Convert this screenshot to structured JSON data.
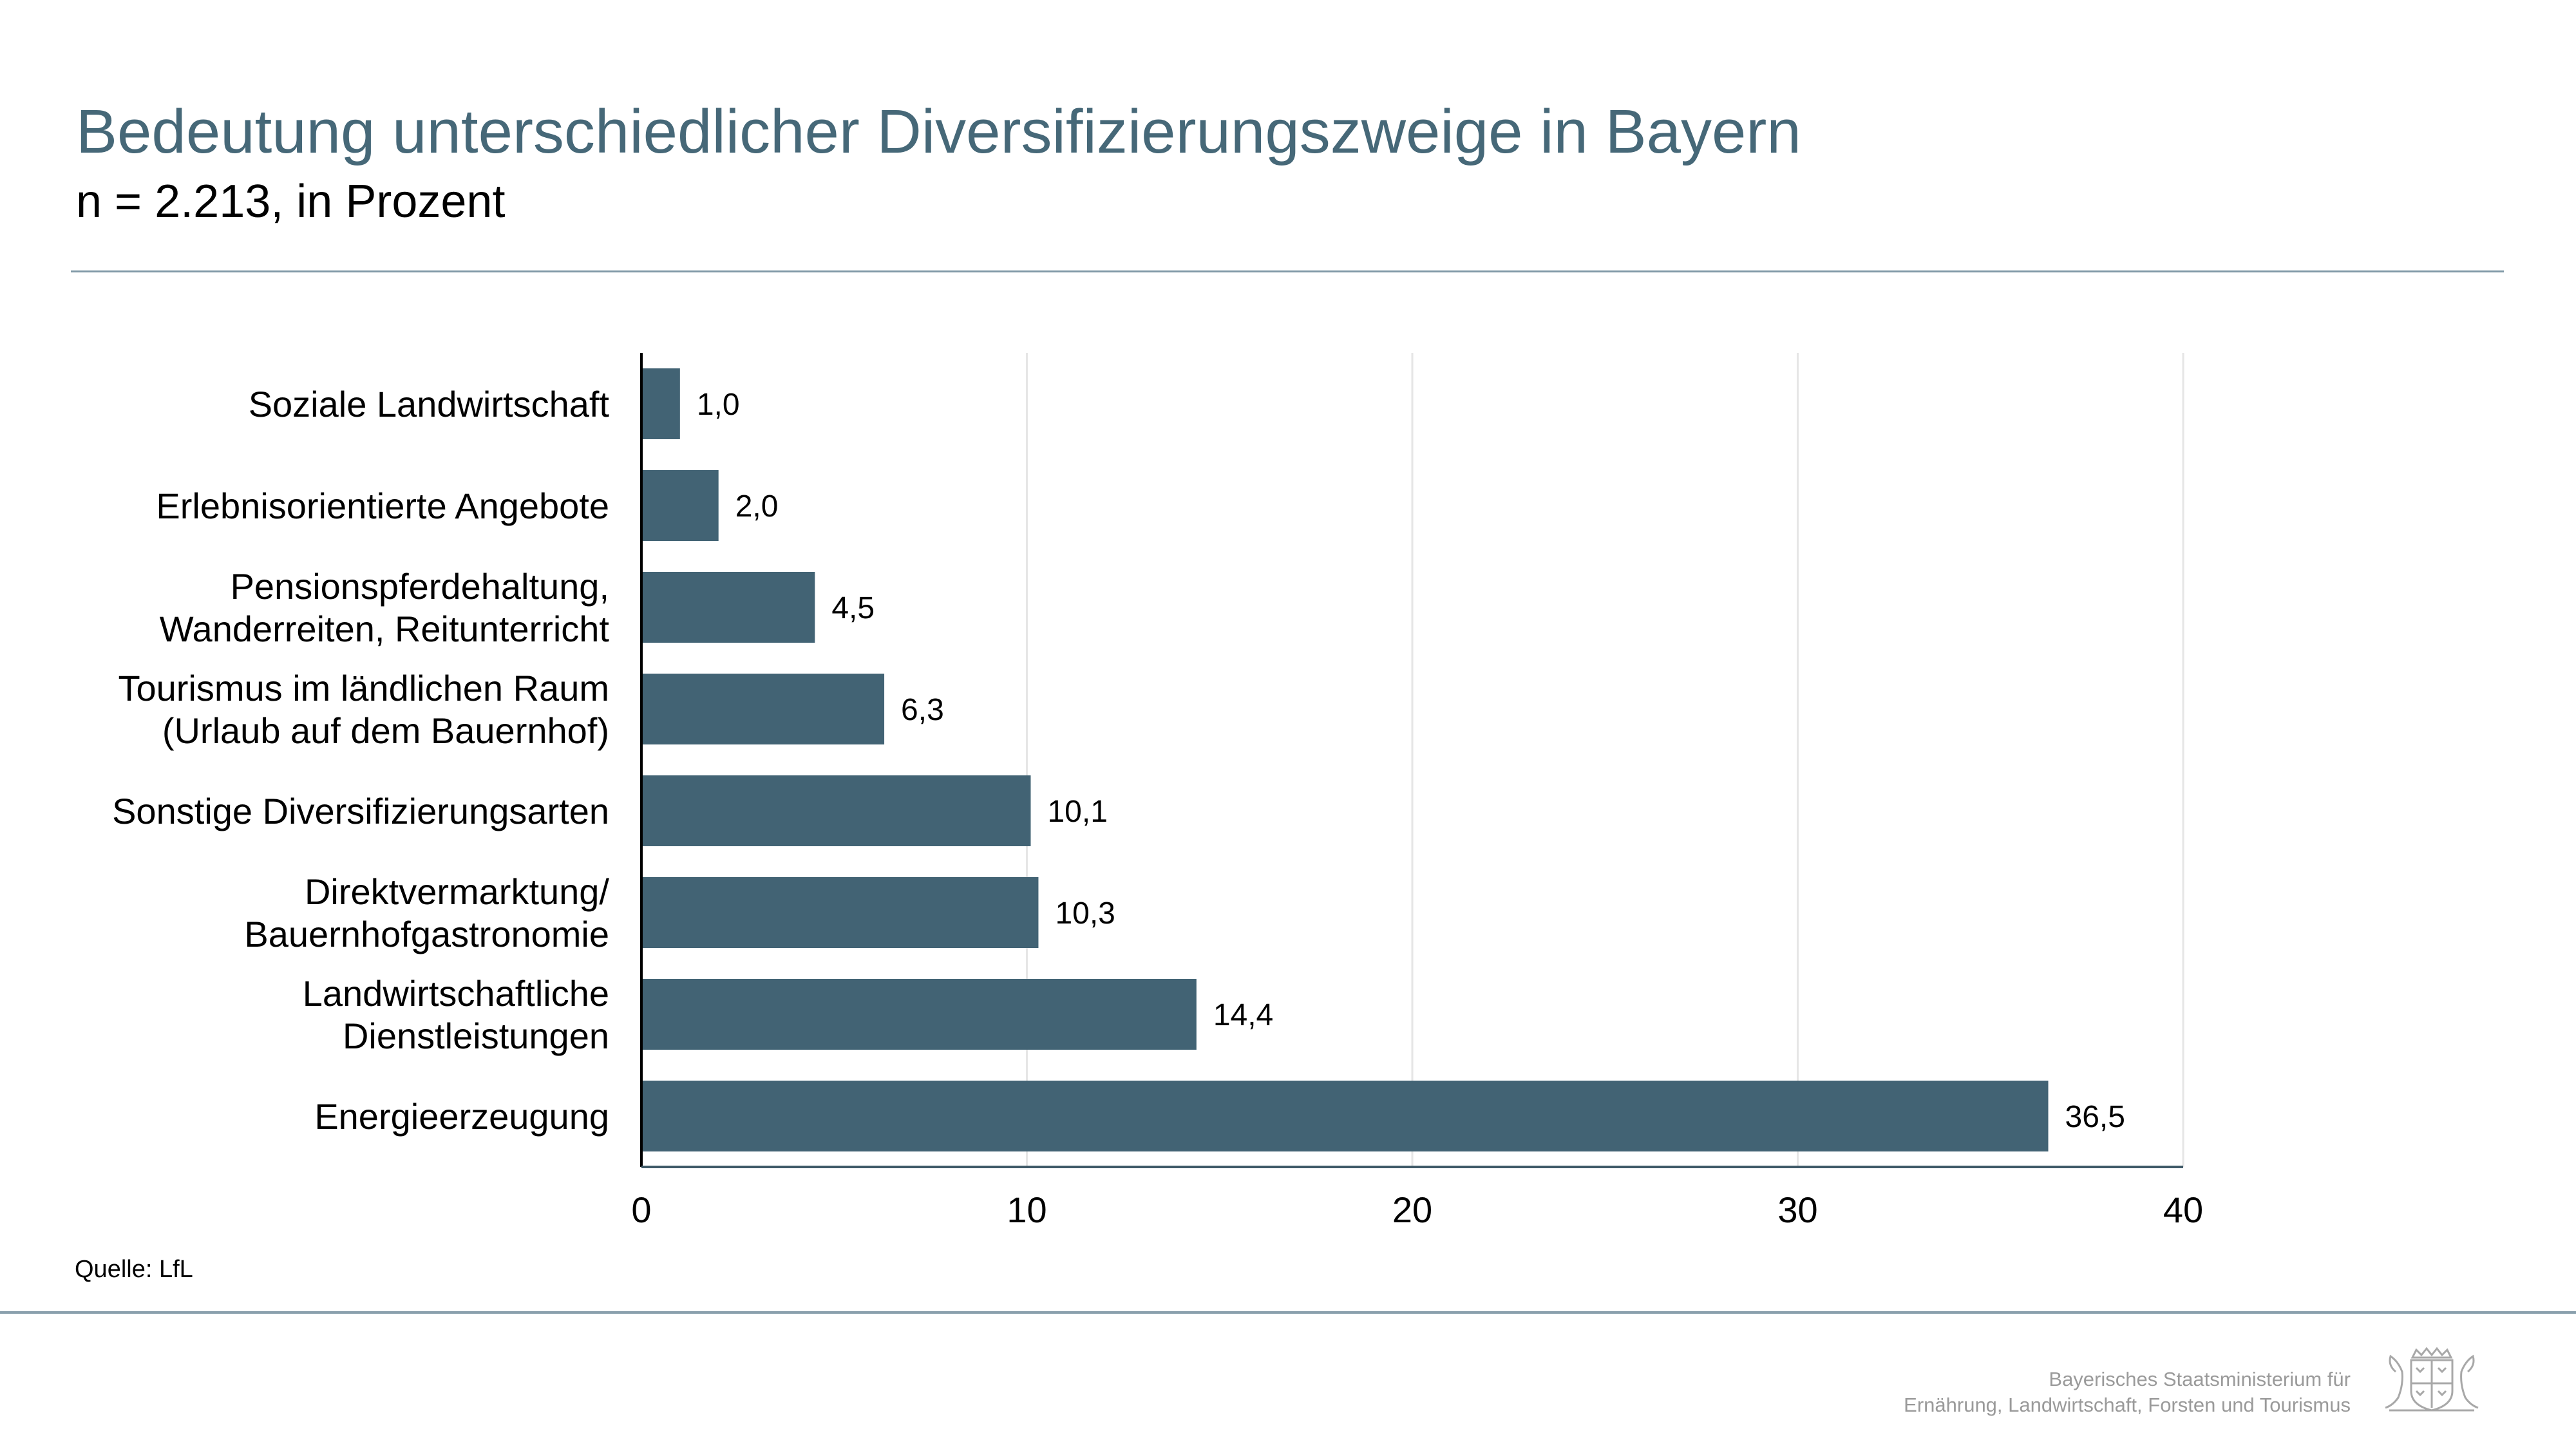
{
  "title": "Bedeutung unterschiedlicher Diversifizierungszweige in Bayern",
  "subtitle": "n = 2.213, in Prozent",
  "source": "Quelle: LfL",
  "footer": {
    "line1": "Bayerisches Staatsministerium für",
    "line2": "Ernährung, Landwirtschaft, Forsten und Tourismus"
  },
  "colors": {
    "bar": "#426374",
    "title": "#466878",
    "rule": "#7f98a6",
    "grid": "#e6e6e6"
  },
  "chart_data": {
    "type": "bar",
    "orientation": "horizontal",
    "title": "Bedeutung unterschiedlicher Diversifizierungszweige in Bayern",
    "subtitle": "n = 2.213, in Prozent",
    "categories": [
      [
        "Soziale Landwirtschaft"
      ],
      [
        "Erlebnisorientierte Angebote"
      ],
      [
        "Pensionspferdehaltung,",
        "Wanderreiten, Reitunterricht"
      ],
      [
        "Tourismus im ländlichen Raum",
        "(Urlaub auf dem Bauernhof)"
      ],
      [
        "Sonstige Diversifizierungsarten"
      ],
      [
        "Direktvermarktung/",
        "Bauernhofgastronomie"
      ],
      [
        "Landwirtschaftliche",
        "Dienstleistungen"
      ],
      [
        "Energieerzeugung"
      ]
    ],
    "values": [
      1.0,
      2.0,
      4.5,
      6.3,
      10.1,
      10.3,
      14.4,
      36.5
    ],
    "value_labels": [
      "1,0",
      "2,0",
      "4,5",
      "6,3",
      "10,1",
      "10,3",
      "14,4",
      "36,5"
    ],
    "xlim": [
      0,
      40
    ],
    "xticks": [
      0,
      10,
      20,
      30,
      40
    ],
    "xtick_labels": [
      "0",
      "10",
      "20",
      "30",
      "40"
    ],
    "grid": "vertical",
    "legend": "none"
  }
}
